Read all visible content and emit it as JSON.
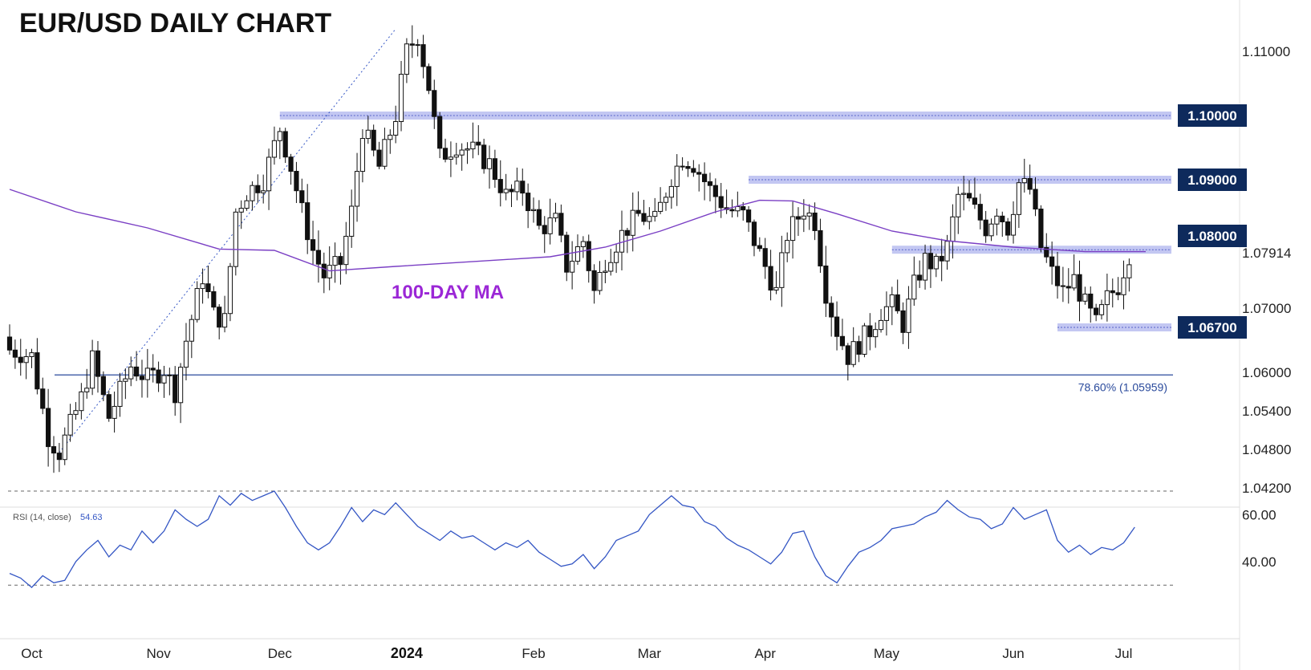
{
  "chart_data": {
    "type": "candlestick",
    "title": "EUR/USD DAILY CHART",
    "price_axis": {
      "ticks": [
        "1.11000",
        "1.07000",
        "1.06000",
        "1.05400",
        "1.04800",
        "1.04200"
      ],
      "ylim": [
        1.0405,
        1.1155
      ]
    },
    "x_labels": [
      {
        "label": "Oct",
        "bold": false,
        "day": 4
      },
      {
        "label": "Nov",
        "bold": false,
        "day": 27
      },
      {
        "label": "Dec",
        "bold": false,
        "day": 49
      },
      {
        "label": "2024",
        "bold": true,
        "day": 72
      },
      {
        "label": "Feb",
        "bold": false,
        "day": 95
      },
      {
        "label": "Mar",
        "bold": false,
        "day": 116
      },
      {
        "label": "Apr",
        "bold": false,
        "day": 137
      },
      {
        "label": "May",
        "bold": false,
        "day": 159
      },
      {
        "label": "Jun",
        "bold": false,
        "day": 182
      },
      {
        "label": "Jul",
        "bold": false,
        "day": 202
      }
    ],
    "levels": [
      {
        "label": "1.10000",
        "value": 1.1,
        "band": true,
        "from_day": 49
      },
      {
        "label": "1.09000",
        "value": 1.09,
        "band": true,
        "from_day": 134
      },
      {
        "label": "1.08000",
        "value": 1.08,
        "band": false,
        "badge_only": true
      },
      {
        "label": "1.07914",
        "value": 1.0791,
        "band": true,
        "from_day": 160,
        "plain": true
      },
      {
        "label": "1.06700",
        "value": 1.067,
        "band": true,
        "from_day": 190
      }
    ],
    "fibonacci": {
      "label": "78.60% (1.05959)",
      "value": 1.05959
    },
    "moving_average": {
      "label": "100-DAY MA",
      "points": [
        [
          0,
          1.0885
        ],
        [
          12,
          1.085
        ],
        [
          25,
          1.0825
        ],
        [
          38,
          1.0792
        ],
        [
          48,
          1.079
        ],
        [
          58,
          1.0758
        ],
        [
          70,
          1.0765
        ],
        [
          85,
          1.0773
        ],
        [
          98,
          1.078
        ],
        [
          108,
          1.0795
        ],
        [
          118,
          1.082
        ],
        [
          128,
          1.085
        ],
        [
          136,
          1.0868
        ],
        [
          142,
          1.0867
        ],
        [
          150,
          1.0847
        ],
        [
          160,
          1.082
        ],
        [
          170,
          1.0805
        ],
        [
          182,
          1.0795
        ],
        [
          195,
          1.0788
        ],
        [
          206,
          1.0788
        ]
      ]
    },
    "trend_line": {
      "from": [
        9,
        1.0475
      ],
      "to": [
        70,
        1.1135
      ]
    },
    "candles_key": [
      [
        0,
        1.0635
      ],
      [
        4,
        1.0625
      ],
      [
        7,
        1.05
      ],
      [
        9,
        1.0475
      ],
      [
        13,
        1.056
      ],
      [
        15,
        1.062
      ],
      [
        18,
        1.053
      ],
      [
        22,
        1.061
      ],
      [
        25,
        1.059
      ],
      [
        28,
        1.0605
      ],
      [
        30,
        1.057
      ],
      [
        32,
        1.065
      ],
      [
        35,
        1.075
      ],
      [
        37,
        1.069
      ],
      [
        39,
        1.068
      ],
      [
        41,
        1.085
      ],
      [
        43,
        1.088
      ],
      [
        46,
        1.09
      ],
      [
        49,
        1.098
      ],
      [
        51,
        1.092
      ],
      [
        53,
        1.085
      ],
      [
        55,
        1.079
      ],
      [
        57,
        1.075
      ],
      [
        60,
        1.077
      ],
      [
        62,
        1.085
      ],
      [
        64,
        1.098
      ],
      [
        67,
        1.092
      ],
      [
        70,
        1.1
      ],
      [
        72,
        1.11
      ],
      [
        74,
        1.1125
      ],
      [
        76,
        1.1045
      ],
      [
        78,
        1.0935
      ],
      [
        81,
        1.0955
      ],
      [
        84,
        1.0945
      ],
      [
        87,
        1.0925
      ],
      [
        90,
        1.0875
      ],
      [
        93,
        1.0885
      ],
      [
        96,
        1.0825
      ],
      [
        99,
        1.0835
      ],
      [
        101,
        1.0765
      ],
      [
        104,
        1.0805
      ],
      [
        106,
        1.0725
      ],
      [
        108,
        1.0775
      ],
      [
        111,
        1.0815
      ],
      [
        114,
        1.0845
      ],
      [
        117,
        1.0835
      ],
      [
        120,
        1.0905
      ],
      [
        122,
        1.0935
      ],
      [
        124,
        1.0925
      ],
      [
        127,
        1.0885
      ],
      [
        130,
        1.0855
      ],
      [
        133,
        1.0845
      ],
      [
        135,
        1.0805
      ],
      [
        137,
        1.0765
      ],
      [
        139,
        1.0725
      ],
      [
        141,
        1.0815
      ],
      [
        144,
        1.0855
      ],
      [
        146,
        1.0835
      ],
      [
        148,
        1.0725
      ],
      [
        150,
        1.0665
      ],
      [
        152,
        1.0625
      ],
      [
        154,
        1.0645
      ],
      [
        156,
        1.0665
      ],
      [
        158,
        1.0695
      ],
      [
        160,
        1.0705
      ],
      [
        162,
        1.0675
      ],
      [
        164,
        1.0735
      ],
      [
        166,
        1.0775
      ],
      [
        168,
        1.0765
      ],
      [
        170,
        1.0795
      ],
      [
        172,
        1.0875
      ],
      [
        174,
        1.0865
      ],
      [
        177,
        1.0825
      ],
      [
        179,
        1.0855
      ],
      [
        181,
        1.0825
      ],
      [
        183,
        1.0895
      ],
      [
        185,
        1.0885
      ],
      [
        187,
        1.0795
      ],
      [
        189,
        1.0755
      ],
      [
        191,
        1.0725
      ],
      [
        193,
        1.0745
      ],
      [
        195,
        1.0705
      ],
      [
        197,
        1.0675
      ],
      [
        199,
        1.0715
      ],
      [
        201,
        1.0735
      ],
      [
        203,
        1.0785
      ]
    ],
    "rsi": {
      "label": "RSI (14, close)",
      "value": "54.63",
      "ticks": [
        "60.00",
        "40.00"
      ],
      "ylim": [
        27,
        70
      ],
      "guides": [
        70,
        30
      ],
      "points": [
        [
          0,
          35
        ],
        [
          2,
          33
        ],
        [
          4,
          29
        ],
        [
          6,
          34
        ],
        [
          8,
          31
        ],
        [
          10,
          32
        ],
        [
          12,
          40
        ],
        [
          14,
          45
        ],
        [
          16,
          49
        ],
        [
          18,
          42
        ],
        [
          20,
          47
        ],
        [
          22,
          45
        ],
        [
          24,
          53
        ],
        [
          26,
          48
        ],
        [
          28,
          53
        ],
        [
          30,
          62
        ],
        [
          32,
          58
        ],
        [
          34,
          55
        ],
        [
          36,
          58
        ],
        [
          38,
          68
        ],
        [
          40,
          64
        ],
        [
          42,
          69
        ],
        [
          44,
          66
        ],
        [
          46,
          68
        ],
        [
          48,
          70
        ],
        [
          50,
          63
        ],
        [
          52,
          55
        ],
        [
          54,
          48
        ],
        [
          56,
          45
        ],
        [
          58,
          48
        ],
        [
          60,
          55
        ],
        [
          62,
          63
        ],
        [
          64,
          57
        ],
        [
          66,
          62
        ],
        [
          68,
          60
        ],
        [
          70,
          65
        ],
        [
          72,
          60
        ],
        [
          74,
          55
        ],
        [
          76,
          52
        ],
        [
          78,
          49
        ],
        [
          80,
          53
        ],
        [
          82,
          50
        ],
        [
          84,
          51
        ],
        [
          86,
          48
        ],
        [
          88,
          45
        ],
        [
          90,
          48
        ],
        [
          92,
          46
        ],
        [
          94,
          49
        ],
        [
          96,
          44
        ],
        [
          98,
          41
        ],
        [
          100,
          38
        ],
        [
          102,
          39
        ],
        [
          104,
          43
        ],
        [
          106,
          37
        ],
        [
          108,
          42
        ],
        [
          110,
          49
        ],
        [
          112,
          51
        ],
        [
          114,
          53
        ],
        [
          116,
          60
        ],
        [
          118,
          64
        ],
        [
          120,
          68
        ],
        [
          122,
          64
        ],
        [
          124,
          63
        ],
        [
          126,
          57
        ],
        [
          128,
          55
        ],
        [
          130,
          50
        ],
        [
          132,
          47
        ],
        [
          134,
          45
        ],
        [
          136,
          42
        ],
        [
          138,
          39
        ],
        [
          140,
          44
        ],
        [
          142,
          52
        ],
        [
          144,
          53
        ],
        [
          146,
          42
        ],
        [
          148,
          34
        ],
        [
          150,
          31
        ],
        [
          152,
          38
        ],
        [
          154,
          44
        ],
        [
          156,
          46
        ],
        [
          158,
          49
        ],
        [
          160,
          54
        ],
        [
          162,
          55
        ],
        [
          164,
          56
        ],
        [
          166,
          59
        ],
        [
          168,
          61
        ],
        [
          170,
          66
        ],
        [
          172,
          62
        ],
        [
          174,
          59
        ],
        [
          176,
          58
        ],
        [
          178,
          54
        ],
        [
          180,
          56
        ],
        [
          182,
          63
        ],
        [
          184,
          58
        ],
        [
          186,
          60
        ],
        [
          188,
          62
        ],
        [
          190,
          49
        ],
        [
          192,
          44
        ],
        [
          194,
          47
        ],
        [
          196,
          43
        ],
        [
          198,
          46
        ],
        [
          200,
          45
        ],
        [
          202,
          48
        ],
        [
          204,
          54.63
        ]
      ]
    },
    "colors": {
      "band": "#b8bdf0",
      "badge": "#0e2a5c",
      "ma": "#7a3fc4",
      "trend": "#3456c4",
      "fib": "#2a4a9c",
      "rsi": "#3456c4"
    }
  }
}
